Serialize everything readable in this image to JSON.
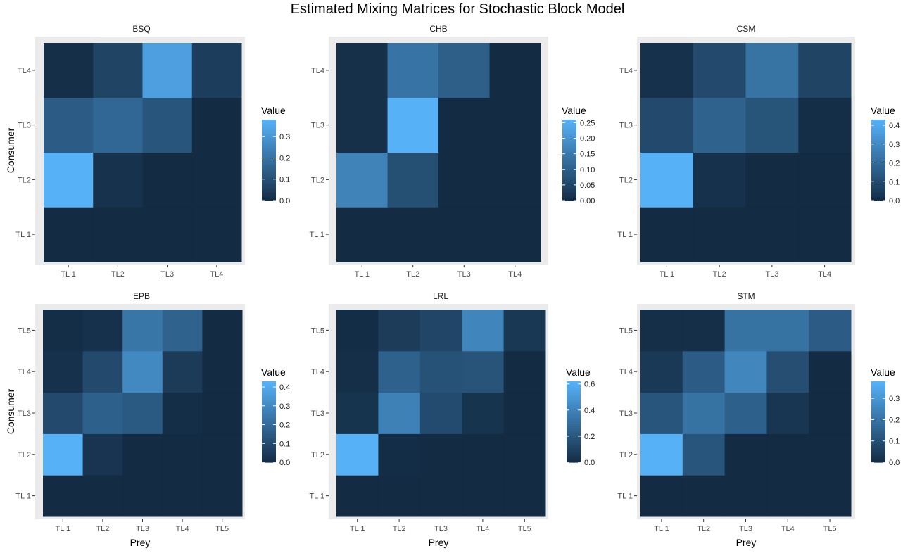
{
  "title": "Estimated Mixing Matrices for Stochastic Block Model",
  "colors": {
    "low": "#132B43",
    "high": "#56B1F7",
    "panel_bg": "#EBEBEB",
    "grid": "#FFFFFF"
  },
  "chart_data": [
    {
      "type": "heatmap",
      "title": "BSQ",
      "xlabel": "",
      "ylabel": "Consumer",
      "x": [
        "TL 1",
        "TL2",
        "TL3",
        "TL4"
      ],
      "y": [
        "TL 1",
        "TL2",
        "TL3",
        "TL4"
      ],
      "values": [
        [
          0,
          0,
          0,
          0
        ],
        [
          0.38,
          0.02,
          0,
          0
        ],
        [
          0.14,
          0.17,
          0.12,
          0
        ],
        [
          0.01,
          0.07,
          0.33,
          0.05
        ]
      ],
      "legend": {
        "title": "Value",
        "limits": [
          0,
          0.38
        ],
        "breaks": [
          0.0,
          0.1,
          0.2,
          0.3
        ],
        "labels": [
          "0.0",
          "0.1",
          "0.2",
          "0.3"
        ],
        "position": "right"
      }
    },
    {
      "type": "heatmap",
      "title": "CHB",
      "xlabel": "",
      "ylabel": "",
      "x": [
        "TL 1",
        "TL2",
        "TL3",
        "TL4"
      ],
      "y": [
        "TL 1",
        "TL2",
        "TL3",
        "TL4"
      ],
      "values": [
        [
          0,
          0,
          0,
          0
        ],
        [
          0.17,
          0.07,
          0,
          0
        ],
        [
          0.01,
          0.26,
          0,
          0
        ],
        [
          0.01,
          0.14,
          0.1,
          0
        ]
      ],
      "legend": {
        "title": "Value",
        "limits": [
          0,
          0.26
        ],
        "breaks": [
          0.0,
          0.05,
          0.1,
          0.15,
          0.2,
          0.25
        ],
        "labels": [
          "0.00",
          "0.05",
          "0.10",
          "0.15",
          "0.20",
          "0.25"
        ],
        "position": "right"
      }
    },
    {
      "type": "heatmap",
      "title": "CSM",
      "xlabel": "",
      "ylabel": "",
      "x": [
        "TL 1",
        "TL2",
        "TL3",
        "TL4"
      ],
      "y": [
        "TL 1",
        "TL2",
        "TL3",
        "TL4"
      ],
      "values": [
        [
          0,
          0,
          0,
          0
        ],
        [
          0.43,
          0.02,
          0,
          0
        ],
        [
          0.1,
          0.18,
          0.13,
          0.01
        ],
        [
          0.02,
          0.1,
          0.23,
          0.08
        ]
      ],
      "legend": {
        "title": "Value",
        "limits": [
          0,
          0.43
        ],
        "breaks": [
          0.0,
          0.1,
          0.2,
          0.3,
          0.4
        ],
        "labels": [
          "0.0",
          "0.1",
          "0.2",
          "0.3",
          "0.4"
        ],
        "position": "right"
      }
    },
    {
      "type": "heatmap",
      "title": "EPB",
      "xlabel": "Prey",
      "ylabel": "Consumer",
      "x": [
        "TL 1",
        "TL2",
        "TL3",
        "TL4",
        "TL5"
      ],
      "y": [
        "TL 1",
        "TL2",
        "TL3",
        "TL4",
        "TL5"
      ],
      "values": [
        [
          0,
          0,
          0,
          0,
          0
        ],
        [
          0.43,
          0.03,
          0,
          0,
          0
        ],
        [
          0.1,
          0.17,
          0.15,
          0.01,
          0
        ],
        [
          0.02,
          0.1,
          0.3,
          0.05,
          0
        ],
        [
          0.01,
          0.02,
          0.24,
          0.18,
          0
        ]
      ],
      "legend": {
        "title": "Value",
        "limits": [
          0,
          0.43
        ],
        "breaks": [
          0.0,
          0.1,
          0.2,
          0.3,
          0.4
        ],
        "labels": [
          "0.0",
          "0.1",
          "0.2",
          "0.3",
          "0.4"
        ],
        "position": "right"
      }
    },
    {
      "type": "heatmap",
      "title": "LRL",
      "xlabel": "Prey",
      "ylabel": "",
      "x": [
        "TL 1",
        "TL2",
        "TL3",
        "TL4",
        "TL5"
      ],
      "y": [
        "TL 1",
        "TL2",
        "TL3",
        "TL4",
        "TL5"
      ],
      "values": [
        [
          0,
          0,
          0,
          0,
          0
        ],
        [
          0.62,
          0.01,
          0,
          0,
          0
        ],
        [
          0.04,
          0.4,
          0.15,
          0.04,
          0
        ],
        [
          0.02,
          0.25,
          0.18,
          0.19,
          0
        ],
        [
          0.01,
          0.08,
          0.12,
          0.42,
          0.06
        ]
      ],
      "legend": {
        "title": "Value",
        "limits": [
          0,
          0.62
        ],
        "breaks": [
          0.0,
          0.2,
          0.4,
          0.6
        ],
        "labels": [
          "0.0",
          "0.2",
          "0.4",
          "0.6"
        ],
        "position": "right"
      }
    },
    {
      "type": "heatmap",
      "title": "STM",
      "xlabel": "Prey",
      "ylabel": "",
      "x": [
        "TL 1",
        "TL2",
        "TL3",
        "TL4",
        "TL5"
      ],
      "y": [
        "TL 1",
        "TL2",
        "TL3",
        "TL4",
        "TL5"
      ],
      "values": [
        [
          0,
          0,
          0,
          0,
          0
        ],
        [
          0.38,
          0.12,
          0,
          0,
          0
        ],
        [
          0.12,
          0.2,
          0.15,
          0.03,
          0
        ],
        [
          0.04,
          0.14,
          0.26,
          0.1,
          0
        ],
        [
          0.01,
          0.01,
          0.2,
          0.2,
          0.14
        ]
      ],
      "legend": {
        "title": "Value",
        "limits": [
          0,
          0.38
        ],
        "breaks": [
          0.0,
          0.1,
          0.2,
          0.3
        ],
        "labels": [
          "0.0",
          "0.1",
          "0.2",
          "0.3"
        ],
        "position": "right"
      }
    }
  ]
}
